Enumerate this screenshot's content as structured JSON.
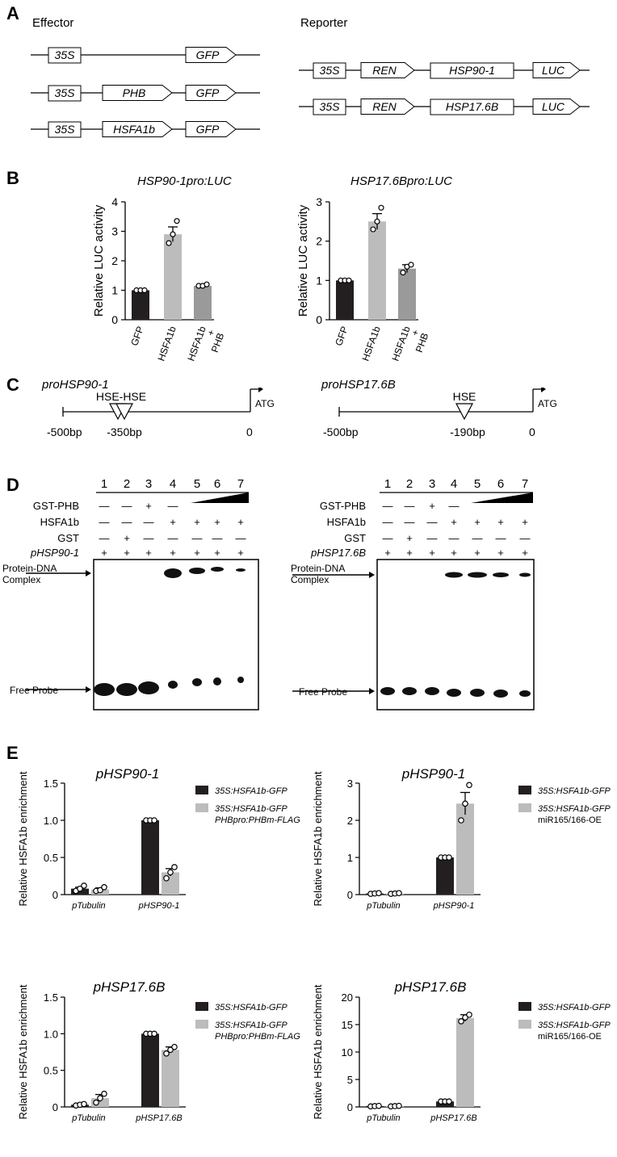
{
  "panels": {
    "A": "A",
    "B": "B",
    "C": "C",
    "D": "D",
    "E": "E"
  },
  "panelA": {
    "effector_title": "Effector",
    "reporter_title": "Reporter",
    "effector_constructs": [
      [
        "35S",
        "GFP"
      ],
      [
        "35S",
        "PHB",
        "GFP"
      ],
      [
        "35S",
        "HSFA1b",
        "GFP"
      ]
    ],
    "reporter_constructs": [
      [
        "35S",
        "REN",
        "HSP90-1",
        "LUC"
      ],
      [
        "35S",
        "REN",
        "HSP17.6B",
        "LUC"
      ]
    ]
  },
  "panelB": {
    "ylabel": "Relative LUC activity",
    "categories": [
      "GFP",
      "HSFA1b",
      "HSFA1b + PHB"
    ],
    "colors": [
      "#231f20",
      "#bcbcbc",
      "#9a9a9a"
    ],
    "charts": [
      {
        "title": "HSP90-1pro:LUC",
        "ylim": [
          0,
          4
        ],
        "ticks": [
          0,
          1,
          2,
          3,
          4
        ],
        "values": [
          1.0,
          2.9,
          1.15
        ],
        "errors": [
          0,
          0.25,
          0.05
        ],
        "points": [
          [
            1.0,
            1.0,
            1.0
          ],
          [
            2.6,
            2.9,
            3.35
          ],
          [
            1.15,
            1.15,
            1.2
          ]
        ]
      },
      {
        "title": "HSP17.6Bpro:LUC",
        "ylim": [
          0,
          3
        ],
        "ticks": [
          0,
          1,
          2,
          3
        ],
        "values": [
          1.0,
          2.5,
          1.3
        ],
        "errors": [
          0,
          0.2,
          0.1
        ],
        "points": [
          [
            1.0,
            1.0,
            1.0
          ],
          [
            2.3,
            2.5,
            2.85
          ],
          [
            1.2,
            1.35,
            1.4
          ]
        ]
      }
    ]
  },
  "panelC": {
    "left": {
      "title": "proHSP90-1",
      "start": "-500bp",
      "site_label": "HSE-HSE",
      "site_pos": "-350bp",
      "end": "0",
      "atg": "ATG"
    },
    "right": {
      "title": "proHSP17.6B",
      "start": "-500bp",
      "site_label": "HSE",
      "site_pos": "-190bp",
      "end": "0",
      "atg": "ATG"
    }
  },
  "panelD": {
    "lanes": [
      "1",
      "2",
      "3",
      "4",
      "5",
      "6",
      "7"
    ],
    "left_rows": [
      {
        "label": "GST-PHB",
        "signs": [
          "—",
          "—",
          "+",
          "—",
          "",
          "",
          ""
        ]
      },
      {
        "label": "HSFA1b",
        "signs": [
          "—",
          "—",
          "—",
          "+",
          "+",
          "+",
          "+"
        ]
      },
      {
        "label": "GST",
        "signs": [
          "—",
          "+",
          "—",
          "—",
          "—",
          "—",
          "—"
        ]
      },
      {
        "label": "pHSP90-1",
        "signs": [
          "+",
          "+",
          "+",
          "+",
          "+",
          "+",
          "+"
        ]
      }
    ],
    "right_rows": [
      {
        "label": "GST-PHB",
        "signs": [
          "—",
          "—",
          "+",
          "—",
          "",
          "",
          ""
        ]
      },
      {
        "label": "HSFA1b",
        "signs": [
          "—",
          "—",
          "—",
          "+",
          "+",
          "+",
          "+"
        ]
      },
      {
        "label": "GST",
        "signs": [
          "—",
          "+",
          "—",
          "—",
          "—",
          "—",
          "—"
        ]
      },
      {
        "label": "pHSP17.6B",
        "signs": [
          "+",
          "+",
          "+",
          "+",
          "+",
          "+",
          "+"
        ]
      }
    ],
    "complex_label_1": "Protein-DNA",
    "complex_label_2": "Complex",
    "free_label": "Free Probe"
  },
  "panelE": {
    "ylabel": "Relative HSFA1b enrichment",
    "colors": [
      "#231f20",
      "#bcbcbc"
    ],
    "charts": [
      {
        "title": "pHSP90-1",
        "categories": [
          "pTubulin",
          "pHSP90-1"
        ],
        "ylim": [
          0,
          1.5
        ],
        "ticks": [
          "0",
          "0.5",
          "1.0",
          "1.5"
        ],
        "legend": [
          [
            "35S:HSFA1b-GFP"
          ],
          [
            "35S:HSFA1b-GFP",
            "PHBpro:PHBm-FLAG"
          ]
        ],
        "values": [
          [
            0.08,
            0.07
          ],
          [
            1.0,
            0.3
          ]
        ],
        "errors": [
          [
            0.02,
            0.02
          ],
          [
            0,
            0.05
          ]
        ],
        "points": [
          [
            [
              0.05,
              0.08,
              0.12
            ],
            [
              0.05,
              0.06,
              0.1
            ]
          ],
          [
            [
              1.0,
              1.0,
              1.0
            ],
            [
              0.22,
              0.3,
              0.37
            ]
          ]
        ]
      },
      {
        "title": "pHSP90-1",
        "categories": [
          "pTubulin",
          "pHSP90-1"
        ],
        "ylim": [
          0,
          3
        ],
        "ticks": [
          "0",
          "1",
          "2",
          "3"
        ],
        "legend": [
          [
            "35S:HSFA1b-GFP"
          ],
          [
            "35S:HSFA1b-GFP",
            "miR165/166-OE"
          ]
        ],
        "values": [
          [
            0.03,
            0.03
          ],
          [
            1.0,
            2.45
          ]
        ],
        "errors": [
          [
            0.01,
            0.01
          ],
          [
            0,
            0.3
          ]
        ],
        "points": [
          [
            [
              0.02,
              0.03,
              0.04
            ],
            [
              0.02,
              0.03,
              0.04
            ]
          ],
          [
            [
              1.0,
              1.0,
              1.0
            ],
            [
              2.0,
              2.45,
              2.95
            ]
          ]
        ]
      },
      {
        "title": "pHSP17.6B",
        "categories": [
          "pTubulin",
          "pHSP17.6B"
        ],
        "ylim": [
          0,
          1.5
        ],
        "ticks": [
          "0",
          "0.5",
          "1.0",
          "1.5"
        ],
        "legend": [
          [
            "35S:HSFA1b-GFP"
          ],
          [
            "35S:HSFA1b-GFP",
            "PHBpro:PHBm-FLAG"
          ]
        ],
        "values": [
          [
            0.03,
            0.12
          ],
          [
            1.0,
            0.78
          ]
        ],
        "errors": [
          [
            0.01,
            0.05
          ],
          [
            0,
            0.04
          ]
        ],
        "points": [
          [
            [
              0.02,
              0.03,
              0.04
            ],
            [
              0.06,
              0.12,
              0.18
            ]
          ],
          [
            [
              1.0,
              1.0,
              1.0
            ],
            [
              0.73,
              0.78,
              0.82
            ]
          ]
        ]
      },
      {
        "title": "pHSP17.6B",
        "categories": [
          "pTubulin",
          "pHSP17.6B"
        ],
        "ylim": [
          0,
          20
        ],
        "ticks": [
          "0",
          "5",
          "10",
          "15",
          "20"
        ],
        "legend": [
          [
            "35S:HSFA1b-GFP"
          ],
          [
            "35S:HSFA1b-GFP",
            "miR165/166-OE"
          ]
        ],
        "values": [
          [
            0.15,
            0.15
          ],
          [
            1.0,
            16.2
          ]
        ],
        "errors": [
          [
            0.05,
            0.05
          ],
          [
            0.1,
            0.6
          ]
        ],
        "points": [
          [
            [
              0.1,
              0.15,
              0.2
            ],
            [
              0.1,
              0.15,
              0.2
            ]
          ],
          [
            [
              1.0,
              1.0,
              1.0
            ],
            [
              15.6,
              16.3,
              16.8
            ]
          ]
        ]
      }
    ]
  }
}
